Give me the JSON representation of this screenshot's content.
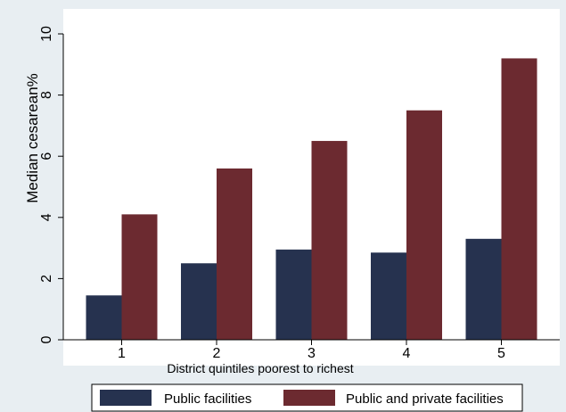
{
  "chart_data": {
    "type": "bar",
    "categories": [
      "1",
      "2",
      "3",
      "4",
      "5"
    ],
    "series": [
      {
        "name": "Public facilities",
        "color": "#26324f",
        "values": [
          1.45,
          2.5,
          2.95,
          2.85,
          3.3
        ]
      },
      {
        "name": "Public and private facilities",
        "color": "#6c2a30",
        "values": [
          4.1,
          5.6,
          6.5,
          7.5,
          9.2
        ]
      }
    ],
    "ylim": [
      0,
      10
    ],
    "yticks": [
      "0",
      "2",
      "4",
      "6",
      "8",
      "10"
    ],
    "ylabel": "Median cesarean%",
    "xlabel": "District quintiles poorest to richest",
    "grid": false,
    "legend_position": "bottom",
    "plot_background": "#ffffff",
    "page_background": "#e8eef2"
  }
}
